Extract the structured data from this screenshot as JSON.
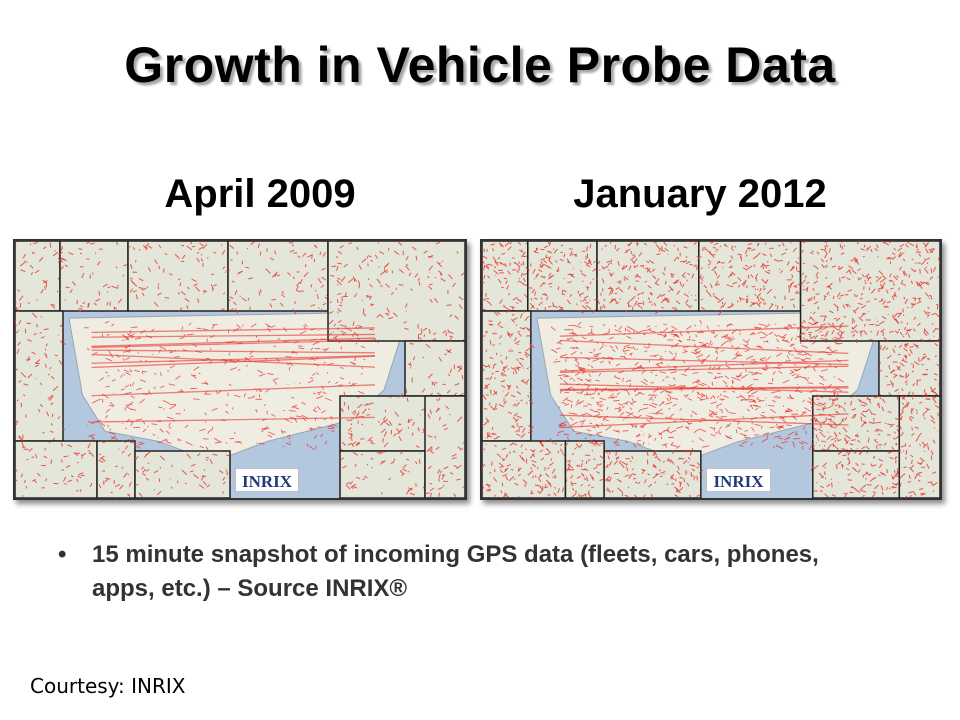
{
  "slide": {
    "title": "Growth in Vehicle Probe Data",
    "maps": [
      {
        "label": "April 2009",
        "logo": "INRIX",
        "density": 0.45
      },
      {
        "label": "January 2012",
        "logo": "INRIX",
        "density": 1.0
      }
    ],
    "bullet": {
      "marker": "•",
      "text": "15 minute snapshot of incoming GPS data (fleets, cars, phones, apps, etc.) – Source INRIX®"
    },
    "courtesy": "Courtesy: INRIX"
  },
  "colors": {
    "probe_red": "#e8322a",
    "land": "#efece2",
    "water": "#b3c7df",
    "border": "#333333"
  }
}
